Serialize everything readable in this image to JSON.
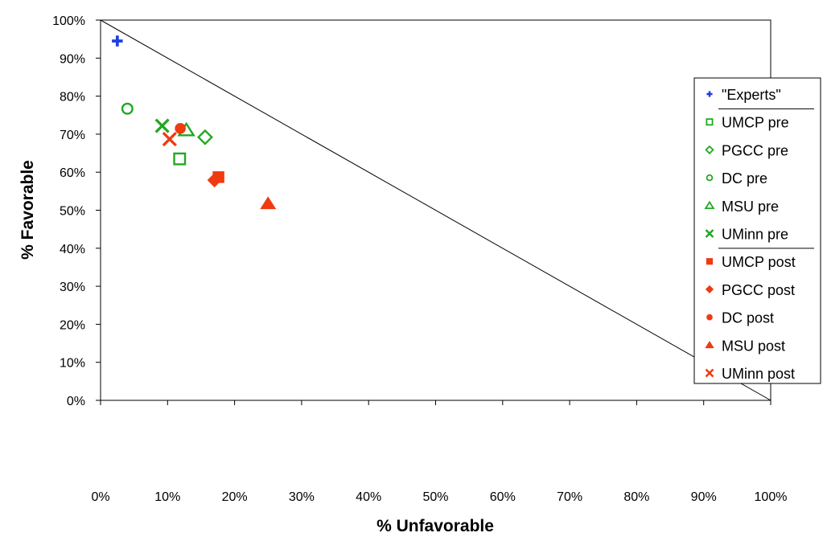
{
  "chart_data": {
    "type": "scatter",
    "xlabel": "% Unfavorable",
    "ylabel": "% Favorable",
    "xlim": [
      0,
      100
    ],
    "ylim": [
      0,
      100
    ],
    "x_ticks": [
      "0%",
      "10%",
      "20%",
      "30%",
      "40%",
      "50%",
      "60%",
      "70%",
      "80%",
      "90%",
      "100%"
    ],
    "y_ticks": [
      "0%",
      "10%",
      "20%",
      "30%",
      "40%",
      "50%",
      "60%",
      "70%",
      "80%",
      "90%",
      "100%"
    ],
    "grid": false,
    "legend_position": "right",
    "reference_line": [
      [
        0,
        100
      ],
      [
        100,
        0
      ]
    ],
    "series": [
      {
        "name": "\"Experts\"",
        "marker": "plus",
        "color": "#1f3fe0",
        "filled": true,
        "points": [
          {
            "x": 2.5,
            "y": 94.5
          }
        ]
      },
      {
        "name": "UMCP pre",
        "marker": "square",
        "color": "#22a822",
        "filled": false,
        "points": [
          {
            "x": 11.8,
            "y": 63.5
          }
        ]
      },
      {
        "name": "PGCC pre",
        "marker": "diamond",
        "color": "#22a822",
        "filled": false,
        "points": [
          {
            "x": 15.6,
            "y": 69.2
          }
        ]
      },
      {
        "name": "DC pre",
        "marker": "circle",
        "color": "#22a822",
        "filled": false,
        "points": [
          {
            "x": 4.0,
            "y": 76.7
          }
        ]
      },
      {
        "name": "MSU pre",
        "marker": "triangle",
        "color": "#22a822",
        "filled": false,
        "points": [
          {
            "x": 12.8,
            "y": 71.0
          }
        ]
      },
      {
        "name": "UMinn pre",
        "marker": "cross",
        "color": "#22a822",
        "filled": false,
        "points": [
          {
            "x": 9.2,
            "y": 72.2
          }
        ]
      },
      {
        "name": "UMCP post",
        "marker": "square",
        "color": "#f03a10",
        "filled": true,
        "points": [
          {
            "x": 17.6,
            "y": 58.7
          }
        ]
      },
      {
        "name": "PGCC post",
        "marker": "diamond",
        "color": "#f03a10",
        "filled": true,
        "points": [
          {
            "x": 17.0,
            "y": 57.9
          }
        ]
      },
      {
        "name": "DC post",
        "marker": "circle",
        "color": "#f03a10",
        "filled": true,
        "points": [
          {
            "x": 11.9,
            "y": 71.5
          }
        ]
      },
      {
        "name": "MSU post",
        "marker": "triangle",
        "color": "#f03a10",
        "filled": true,
        "points": [
          {
            "x": 25.0,
            "y": 51.7
          }
        ]
      },
      {
        "name": "UMinn post",
        "marker": "cross",
        "color": "#f03a10",
        "filled": true,
        "points": [
          {
            "x": 10.3,
            "y": 68.7
          }
        ]
      }
    ]
  }
}
